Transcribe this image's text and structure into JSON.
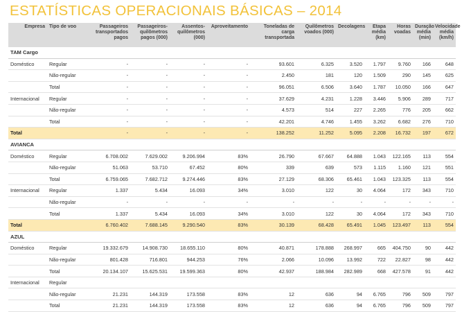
{
  "title": "ESTATÍSTICAS OPERACIONAIS BÁSICAS – 2014",
  "columns": [
    "Empresa",
    "Tipo de voo",
    "Passageiros transportados pagos",
    "Passageiros-quilômetros pagos (000)",
    "Assentos-quilômetros (000)",
    "Aproveitamento",
    "Toneladas de carga transportada",
    "Quilômetros voados (000)",
    "Decolagens",
    "Etapa média (km)",
    "Horas voadas",
    "Duração média (min)",
    "Velocidade média (km/h)"
  ],
  "rows": [
    {
      "kind": "company",
      "cells": [
        "TAM Cargo",
        "",
        "",
        "",
        "",
        "",
        "",
        "",
        "",
        "",
        "",
        "",
        ""
      ]
    },
    {
      "kind": "data",
      "cells": [
        "Doméstico",
        "Regular",
        "-",
        "-",
        "-",
        "-",
        "93.601",
        "6.325",
        "3.520",
        "1.797",
        "9.760",
        "166",
        "648"
      ]
    },
    {
      "kind": "data",
      "cells": [
        "",
        "Não-regular",
        "-",
        "-",
        "-",
        "-",
        "2.450",
        "181",
        "120",
        "1.509",
        "290",
        "145",
        "625"
      ]
    },
    {
      "kind": "sub",
      "cells": [
        "",
        "Total",
        "-",
        "-",
        "-",
        "-",
        "96.051",
        "6.506",
        "3.640",
        "1.787",
        "10.050",
        "166",
        "647"
      ]
    },
    {
      "kind": "data",
      "cells": [
        "Internacional",
        "Regular",
        "-",
        "-",
        "-",
        "-",
        "37.629",
        "4.231",
        "1.228",
        "3.446",
        "5.906",
        "289",
        "717"
      ]
    },
    {
      "kind": "data",
      "cells": [
        "",
        "Não-regular",
        "-",
        "-",
        "-",
        "-",
        "4.573",
        "514",
        "227",
        "2.265",
        "776",
        "205",
        "662"
      ]
    },
    {
      "kind": "sub",
      "cells": [
        "",
        "Total",
        "-",
        "-",
        "-",
        "-",
        "42.201",
        "4.746",
        "1.455",
        "3.262",
        "6.682",
        "276",
        "710"
      ]
    },
    {
      "kind": "grand",
      "cells": [
        "Total",
        "",
        "-",
        "-",
        "-",
        "-",
        "138.252",
        "11.252",
        "5.095",
        "2.208",
        "16.732",
        "197",
        "672"
      ]
    },
    {
      "kind": "company",
      "cells": [
        "AVIANCA",
        "",
        "",
        "",
        "",
        "",
        "",
        "",
        "",
        "",
        "",
        "",
        ""
      ]
    },
    {
      "kind": "data",
      "cells": [
        "Doméstico",
        "Regular",
        "6.708.002",
        "7.629.002",
        "9.206.994",
        "83%",
        "26.790",
        "67.667",
        "64.888",
        "1.043",
        "122.165",
        "113",
        "554"
      ]
    },
    {
      "kind": "data",
      "cells": [
        "",
        "Não-regular",
        "51.063",
        "53.710",
        "67.452",
        "80%",
        "339",
        "639",
        "573",
        "1.115",
        "1.160",
        "121",
        "551"
      ]
    },
    {
      "kind": "sub",
      "cells": [
        "",
        "Total",
        "6.759.065",
        "7.682.712",
        "9.274.446",
        "83%",
        "27.129",
        "68.306",
        "65.461",
        "1.043",
        "123.325",
        "113",
        "554"
      ]
    },
    {
      "kind": "data",
      "cells": [
        "Internacional",
        "Regular",
        "1.337",
        "5.434",
        "16.093",
        "34%",
        "3.010",
        "122",
        "30",
        "4.064",
        "172",
        "343",
        "710"
      ]
    },
    {
      "kind": "data",
      "cells": [
        "",
        "Não-regular",
        "-",
        "-",
        "-",
        "-",
        "-",
        "-",
        "-",
        "-",
        "-",
        "-",
        "-"
      ]
    },
    {
      "kind": "sub",
      "cells": [
        "",
        "Total",
        "1.337",
        "5.434",
        "16.093",
        "34%",
        "3.010",
        "122",
        "30",
        "4.064",
        "172",
        "343",
        "710"
      ]
    },
    {
      "kind": "grand",
      "cells": [
        "Total",
        "",
        "6.760.402",
        "7.688.145",
        "9.290.540",
        "83%",
        "30.139",
        "68.428",
        "65.491",
        "1.045",
        "123.497",
        "113",
        "554"
      ]
    },
    {
      "kind": "company",
      "cells": [
        "AZUL",
        "",
        "",
        "",
        "",
        "",
        "",
        "",
        "",
        "",
        "",
        "",
        ""
      ]
    },
    {
      "kind": "data",
      "cells": [
        "Doméstico",
        "Regular",
        "19.332.679",
        "14.908.730",
        "18.655.110",
        "80%",
        "40.871",
        "178.888",
        "268.997",
        "665",
        "404.750",
        "90",
        "442"
      ]
    },
    {
      "kind": "data",
      "cells": [
        "",
        "Não-regular",
        "801.428",
        "716.801",
        "944.253",
        "76%",
        "2.066",
        "10.096",
        "13.992",
        "722",
        "22.827",
        "98",
        "442"
      ]
    },
    {
      "kind": "sub",
      "cells": [
        "",
        "Total",
        "20.134.107",
        "15.625.531",
        "19.599.363",
        "80%",
        "42.937",
        "188.984",
        "282.989",
        "668",
        "427.578",
        "91",
        "442"
      ]
    },
    {
      "kind": "data",
      "cells": [
        "Internacional",
        "Regular",
        "",
        "",
        "",
        "",
        "",
        "",
        "",
        "",
        "",
        "",
        ""
      ]
    },
    {
      "kind": "data",
      "cells": [
        "",
        "Não-regular",
        "21.231",
        "144.319",
        "173.558",
        "83%",
        "12",
        "636",
        "94",
        "6.765",
        "796",
        "509",
        "797"
      ]
    },
    {
      "kind": "sub",
      "cells": [
        "",
        "Total",
        "21.231",
        "144.319",
        "173.558",
        "83%",
        "12",
        "636",
        "94",
        "6.765",
        "796",
        "509",
        "797"
      ]
    }
  ]
}
